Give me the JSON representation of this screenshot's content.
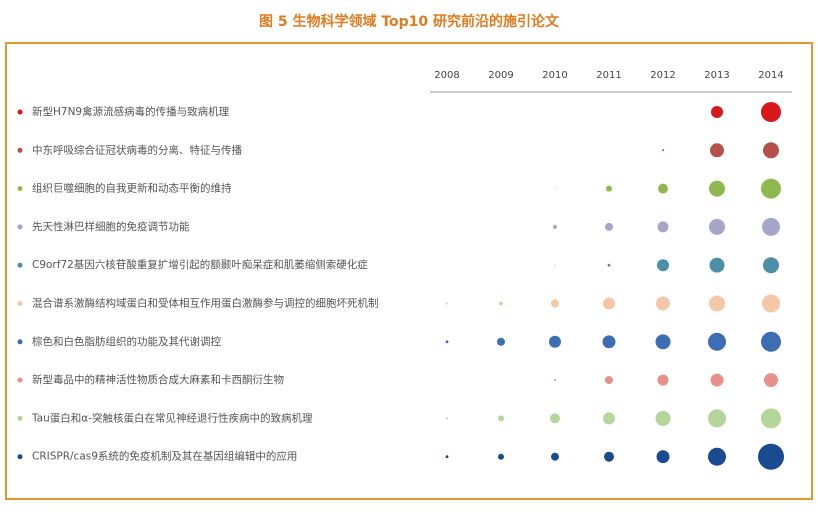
{
  "chart_data": {
    "type": "bubble",
    "title": "图 5 生物科学领域 Top10 研究前沿的施引论文",
    "x": [
      "2008",
      "2009",
      "2010",
      "2011",
      "2012",
      "2013",
      "2014"
    ],
    "series": [
      {
        "name": "新型H7N9禽源流感病毒的传播与致病机理",
        "color": "#d7191c",
        "values": [
          null,
          null,
          null,
          null,
          null,
          36,
          100
        ]
      },
      {
        "name": "中东呼吸综合征冠状病毒的分离、特征与传播",
        "color": "#b5504a",
        "values": [
          null,
          null,
          null,
          null,
          1,
          49,
          64
        ]
      },
      {
        "name": "组织巨噬细胞的自我更新和动态平衡的维持",
        "color": "#8fb950",
        "values": [
          null,
          null,
          0.25,
          9,
          25,
          64,
          100
        ]
      },
      {
        "name": "先天性淋巴样细胞的免疫调节功能",
        "color": "#a6a6c8",
        "values": [
          null,
          null,
          4,
          16,
          30,
          64,
          81
        ]
      },
      {
        "name": "C9orf72基因六核苷酸重复扩增引起的额颞叶痴呆症和肌萎缩侧索硬化症",
        "color": "#4d8fa6",
        "values": [
          null,
          null,
          0.25,
          2,
          36,
          56,
          64
        ]
      },
      {
        "name": "混合谱系激酶结构域蛋白和受体相互作用蛋白激酶参与调控的细胞坏死机制",
        "color": "#f3c7a8",
        "values": [
          1,
          4,
          16,
          36,
          49,
          64,
          81
        ]
      },
      {
        "name": "棕色和白色脂肪组织的功能及其代谢调控",
        "color": "#3d6eb4",
        "values": [
          2,
          16,
          36,
          42,
          56,
          81,
          100
        ]
      },
      {
        "name": "新型毒品中的精神活性物质合成大麻素和卡西酮衍生物",
        "color": "#e8908a",
        "values": [
          null,
          null,
          1,
          16,
          30,
          42,
          49
        ]
      },
      {
        "name": "Tau蛋白和α-突触核蛋白在常见神经退行性疾病中的致病机理",
        "color": "#b5d69a",
        "values": [
          1,
          9,
          25,
          36,
          56,
          81,
          100
        ]
      },
      {
        "name": "CRISPR/cas9系统的免疫机制及其在基因组编辑中的应用",
        "color": "#1a4a8f",
        "values": [
          2,
          9,
          16,
          25,
          42,
          81,
          169
        ]
      }
    ]
  }
}
